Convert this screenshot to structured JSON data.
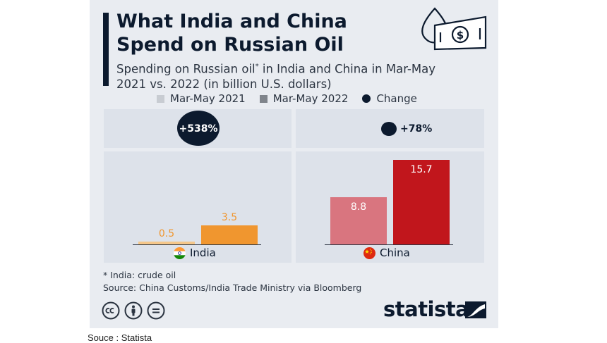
{
  "title_line1": "What India and China",
  "title_line2": "Spend on Russian Oil",
  "subtitle_part1": "Spending on Russian oil",
  "subtitle_sup": "*",
  "subtitle_part2": " in India and China in Mar-May",
  "subtitle_line2": "2021 vs. 2022  (in billion U.S. dollars)",
  "chart_data": {
    "type": "bar",
    "categories": [
      "India",
      "China"
    ],
    "series": [
      {
        "name": "Mar-May 2021",
        "values": [
          0.5,
          8.8
        ]
      },
      {
        "name": "Mar-May 2022",
        "values": [
          3.5,
          15.7
        ]
      }
    ],
    "change_label": "Change",
    "changes": [
      "+538%",
      "+78%"
    ],
    "ylim": [
      0,
      15.7
    ],
    "legend_position": "top",
    "colors": {
      "india_2021": "#f5c78a",
      "india_2022": "#f0962f",
      "china_2021": "#d9757f",
      "china_2022": "#c1161c",
      "change": "#0c1a2e",
      "legend_2021": "#c8ccd2",
      "legend_2022": "#7f848b"
    }
  },
  "notes": {
    "footnote": "* India: crude oil",
    "source": "Source: China Customs/India Trade Ministry via Bloomberg"
  },
  "brand": "statista",
  "caption": "Souce : Statista"
}
